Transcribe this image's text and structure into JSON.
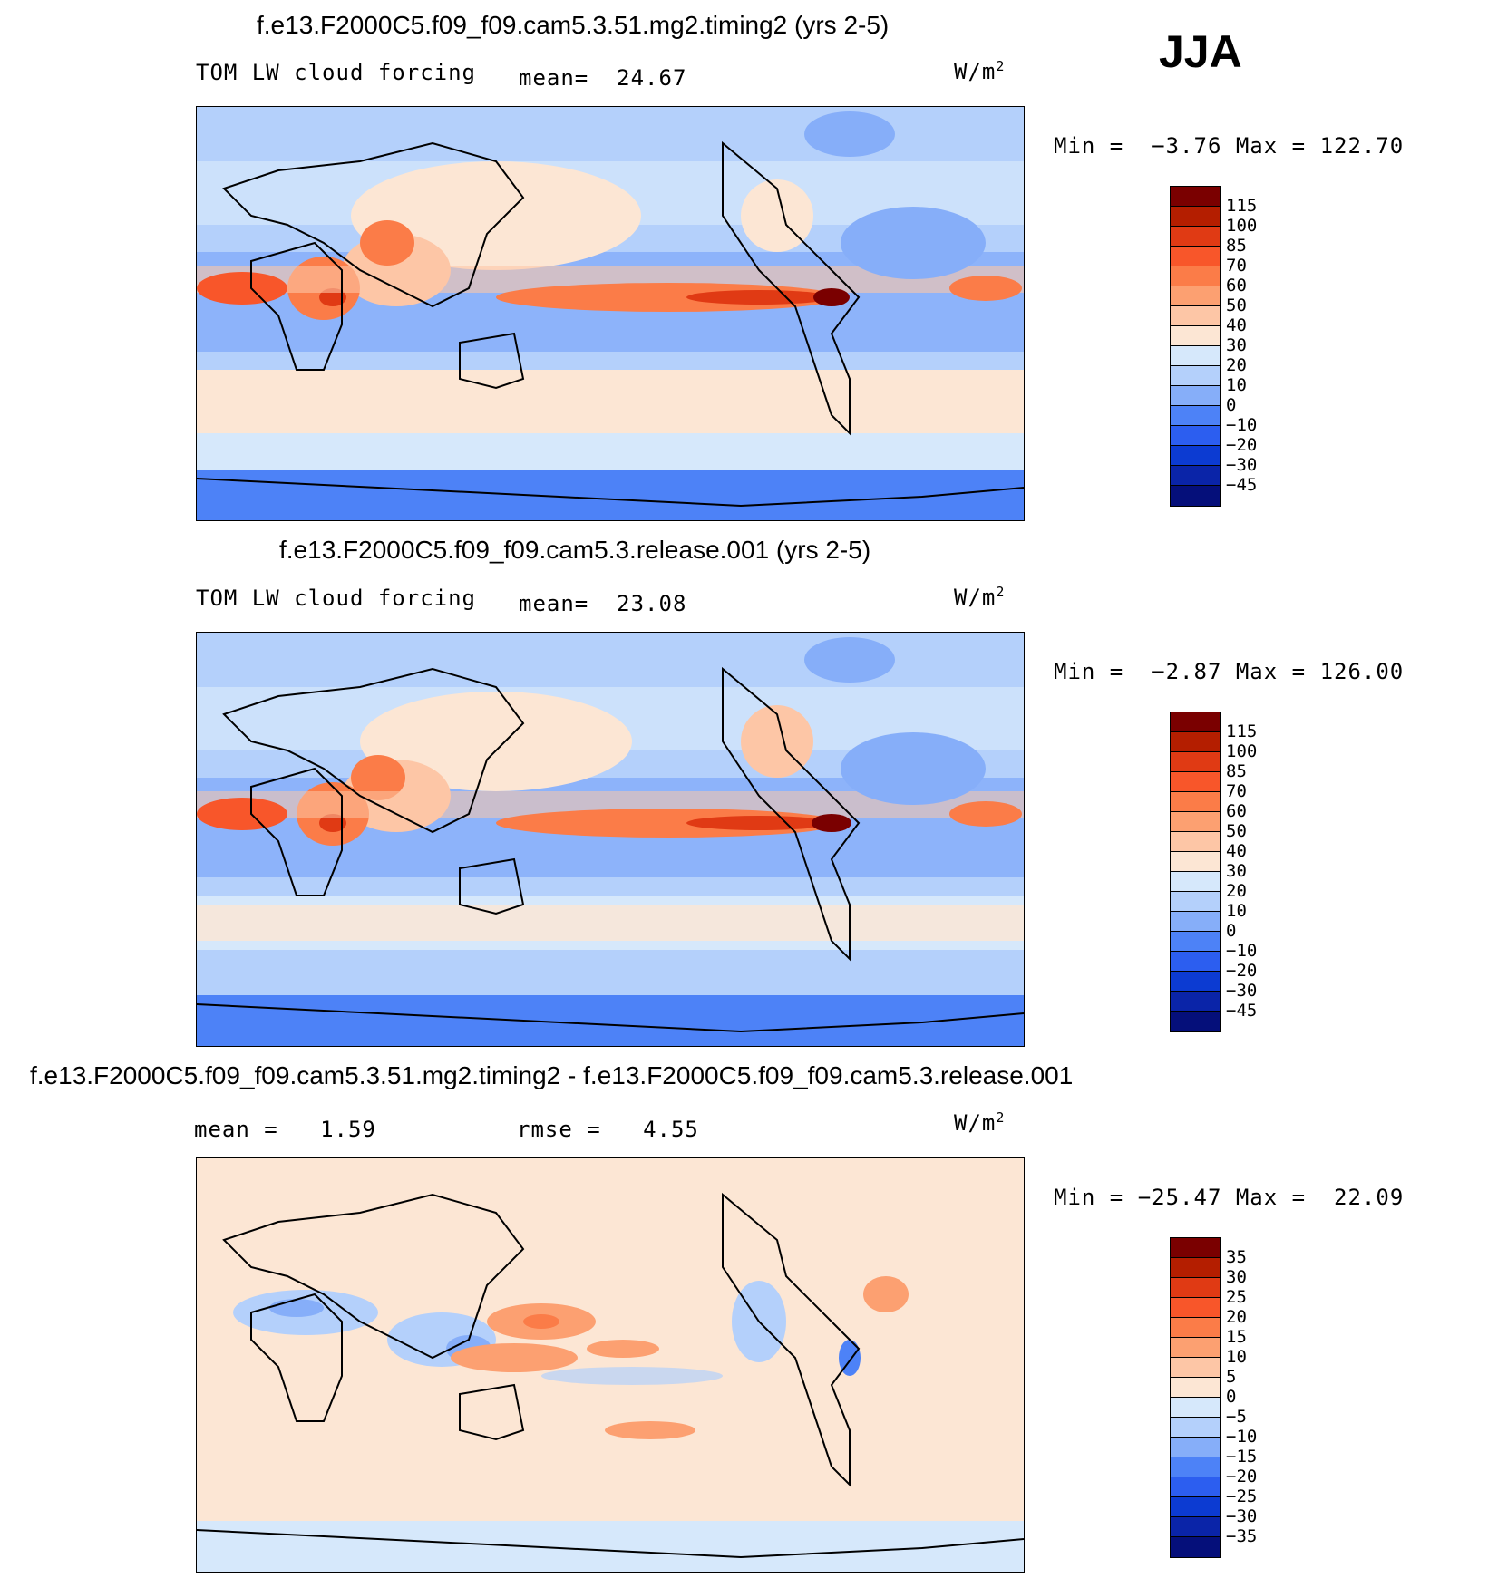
{
  "season": "JJA",
  "panels": [
    {
      "title": "f.e13.F2000C5.f09_f09.cam5.3.51.mg2.timing2 (yrs 2-5)",
      "variable": "TOM LW cloud forcing",
      "stat1_label": "mean=",
      "stat1_value": "24.67",
      "stat2_label": "",
      "stat2_value": "",
      "units": "W/m",
      "units_sup": "2",
      "min_label": "Min =",
      "min_value": "−3.76",
      "max_label": "Max =",
      "max_value": "122.70",
      "colorbar": {
        "labels": [
          "115",
          "100",
          "85",
          "70",
          "60",
          "50",
          "40",
          "30",
          "20",
          "10",
          "0",
          "−10",
          "−20",
          "−30",
          "−45"
        ],
        "colors": [
          "#7a0000",
          "#b41e00",
          "#e03a14",
          "#f8562a",
          "#fb7c48",
          "#fca071",
          "#fdc6a6",
          "#fce6d4",
          "#d6e8fb",
          "#b4d0fb",
          "#86aef9",
          "#4d82f7",
          "#2c5ef0",
          "#0c3bd2",
          "#0a24a8",
          "#050f7a"
        ]
      }
    },
    {
      "title": "f.e13.F2000C5.f09_f09.cam5.3.release.001 (yrs 2-5)",
      "variable": "TOM LW cloud forcing",
      "stat1_label": "mean=",
      "stat1_value": "23.08",
      "stat2_label": "",
      "stat2_value": "",
      "units": "W/m",
      "units_sup": "2",
      "min_label": "Min =",
      "min_value": "−2.87",
      "max_label": "Max =",
      "max_value": "126.00",
      "colorbar": {
        "labels": [
          "115",
          "100",
          "85",
          "70",
          "60",
          "50",
          "40",
          "30",
          "20",
          "10",
          "0",
          "−10",
          "−20",
          "−30",
          "−45"
        ],
        "colors": [
          "#7a0000",
          "#b41e00",
          "#e03a14",
          "#f8562a",
          "#fb7c48",
          "#fca071",
          "#fdc6a6",
          "#fce6d4",
          "#d6e8fb",
          "#b4d0fb",
          "#86aef9",
          "#4d82f7",
          "#2c5ef0",
          "#0c3bd2",
          "#0a24a8",
          "#050f7a"
        ]
      }
    },
    {
      "title": "f.e13.F2000C5.f09_f09.cam5.3.51.mg2.timing2 - f.e13.F2000C5.f09_f09.cam5.3.release.001",
      "variable": "",
      "stat1_label": "mean =",
      "stat1_value": "1.59",
      "stat2_label": "rmse =",
      "stat2_value": "4.55",
      "units": "W/m",
      "units_sup": "2",
      "min_label": "Min =",
      "min_value": "−25.47",
      "max_label": "Max =",
      "max_value": "22.09",
      "colorbar": {
        "labels": [
          "35",
          "30",
          "25",
          "20",
          "15",
          "10",
          "5",
          "0",
          "−5",
          "−10",
          "−15",
          "−20",
          "−25",
          "−30",
          "−35"
        ],
        "colors": [
          "#7a0000",
          "#b41e00",
          "#e03a14",
          "#f8562a",
          "#fb7c48",
          "#fca071",
          "#fdc6a6",
          "#fce6d4",
          "#d6e8fb",
          "#b4d0fb",
          "#86aef9",
          "#4d82f7",
          "#2c5ef0",
          "#0c3bd2",
          "#0a24a8",
          "#050f7a"
        ]
      }
    }
  ]
}
